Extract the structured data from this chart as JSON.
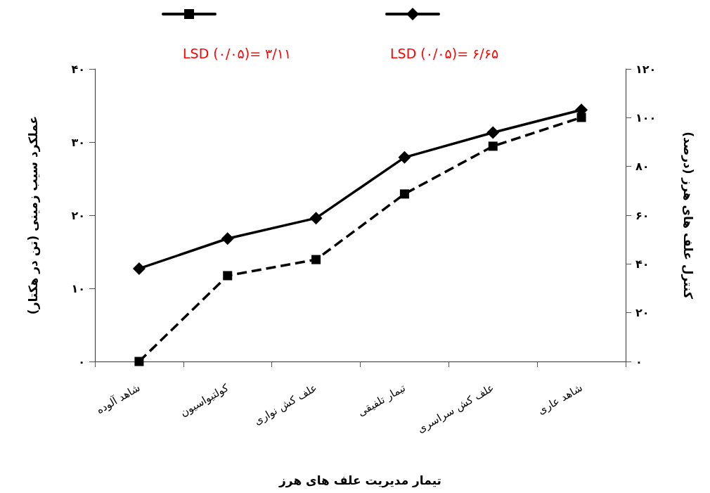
{
  "chart_data": {
    "type": "line",
    "xlabel": "تیمار مدیریت علف های هرز",
    "ylabel": "عملکرد سیب زمینی (تن در هکتار)",
    "y2label": "کنترل علف های هرز (درصد)",
    "categories": [
      "شاهد آلوده",
      "کولتیواسیون",
      "علف کش نواری",
      "تیمار تلفیقی",
      "علف کش سراسری",
      "شاهد عاری"
    ],
    "series": [
      {
        "color": "#000000",
        "marker": "square",
        "line_style": "dashed",
        "axis": "y2",
        "values": [
          0,
          35.2,
          41.8,
          68.7,
          88.3,
          100.1
        ]
      },
      {
        "color": "#000000",
        "marker": "diamond",
        "line_style": "solid",
        "values": [
          12.7,
          16.8,
          19.6,
          27.9,
          31.3,
          34.4
        ]
      }
    ],
    "ylim": [
      0,
      40
    ],
    "yticks": [
      {
        "value": 0,
        "label": "۰"
      },
      {
        "value": 10,
        "label": "۱۰"
      },
      {
        "value": 20,
        "label": "۲۰"
      },
      {
        "value": 30,
        "label": "۳۰"
      },
      {
        "value": 40,
        "label": "۴۰"
      }
    ],
    "y2lim": [
      0,
      120
    ],
    "y2ticks": [
      {
        "value": 0,
        "label": "۰"
      },
      {
        "value": 20,
        "label": "۲۰"
      },
      {
        "value": 40,
        "label": "۴۰"
      },
      {
        "value": 60,
        "label": "۶۰"
      },
      {
        "value": 80,
        "label": "۸۰"
      },
      {
        "value": 100,
        "label": "۱۰۰"
      },
      {
        "value": 120,
        "label": "۱۲۰"
      }
    ],
    "annotations": [
      "LSD (۰/۰۵)= ۳/۱۱",
      "LSD (۰/۰۵)= ۶/۶۵"
    ],
    "grid": false
  }
}
